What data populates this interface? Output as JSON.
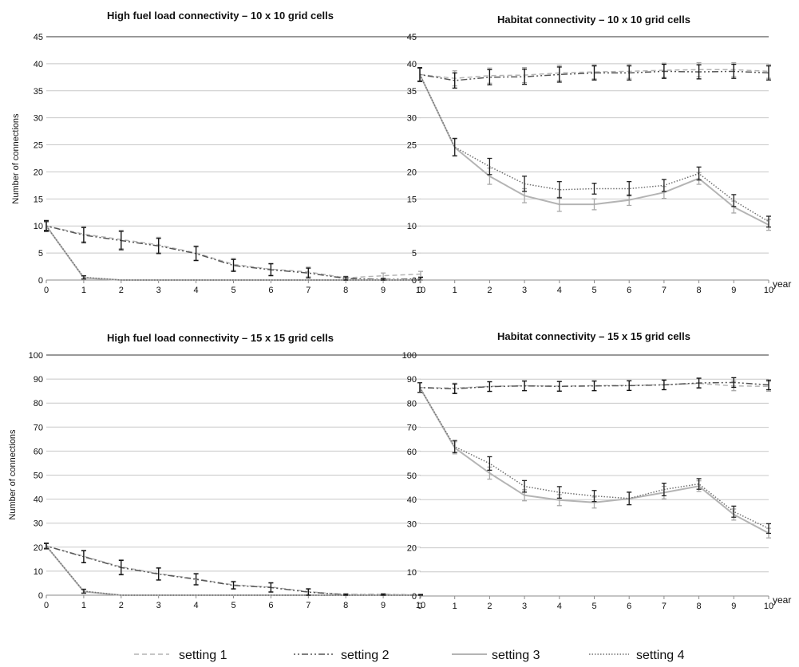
{
  "legend": {
    "entries": [
      "setting 1",
      "setting 2",
      "setting 3",
      "setting 4"
    ]
  },
  "chart_data": [
    {
      "type": "line",
      "title": "High fuel load connectivity – 10 x 10 grid cells",
      "xlabel": "",
      "ylabel": "Number of connections",
      "x": [
        0,
        1,
        2,
        3,
        4,
        5,
        6,
        7,
        8,
        9,
        10
      ],
      "xlim": [
        0,
        10
      ],
      "ylim": [
        0,
        45
      ],
      "yticks": [
        0,
        5,
        10,
        15,
        20,
        25,
        30,
        35,
        40,
        45
      ],
      "error_bars": true,
      "series": [
        {
          "name": "setting 1",
          "values": [
            10,
            8.5,
            7.5,
            6.5,
            5,
            2.9,
            2,
            1.5,
            0.4,
            0.8,
            1.1
          ],
          "err": [
            1,
            1.4,
            1.7,
            1.4,
            1.3,
            1.1,
            1.1,
            0.9,
            0.3,
            0.5,
            0.5
          ]
        },
        {
          "name": "setting 2",
          "values": [
            10,
            8.3,
            7.3,
            6.3,
            4.9,
            2.7,
            1.9,
            1.3,
            0.3,
            0.1,
            0.2
          ],
          "err": [
            1,
            1.4,
            1.7,
            1.4,
            1.3,
            1.1,
            1.1,
            0.9,
            0.3,
            0.2,
            0.3
          ]
        },
        {
          "name": "setting 3",
          "values": [
            10,
            0.4,
            0,
            0,
            0,
            0,
            0,
            0,
            0,
            0,
            0
          ],
          "err": [
            0.8,
            0.3,
            0,
            0,
            0,
            0,
            0,
            0,
            0,
            0,
            0
          ]
        },
        {
          "name": "setting 4",
          "values": [
            10,
            0.5,
            0,
            0,
            0,
            0,
            0,
            0,
            0,
            0,
            0
          ],
          "err": [
            0.8,
            0.3,
            0,
            0,
            0,
            0,
            0,
            0,
            0,
            0,
            0
          ]
        }
      ]
    },
    {
      "type": "line",
      "title": "Habitat connectivity – 10 x 10 grid cells",
      "xlabel": "year",
      "ylabel": "",
      "x": [
        0,
        1,
        2,
        3,
        4,
        5,
        6,
        7,
        8,
        9,
        10
      ],
      "xlim": [
        0,
        10
      ],
      "ylim": [
        0,
        45
      ],
      "yticks": [
        0,
        5,
        10,
        15,
        20,
        25,
        30,
        35,
        40,
        45
      ],
      "error_bars": true,
      "series": [
        {
          "name": "setting 1",
          "values": [
            38,
            37.3,
            37.8,
            37.9,
            38.3,
            38.5,
            38.6,
            38.8,
            38.9,
            38.9,
            38.6
          ],
          "err": [
            1.3,
            1.4,
            1.4,
            1.4,
            1.4,
            1.3,
            1.3,
            1.3,
            1.3,
            1.3,
            1.3
          ]
        },
        {
          "name": "setting 2",
          "values": [
            38,
            36.9,
            37.5,
            37.6,
            38.0,
            38.3,
            38.3,
            38.6,
            38.5,
            38.6,
            38.3
          ],
          "err": [
            1.3,
            1.4,
            1.4,
            1.4,
            1.4,
            1.3,
            1.3,
            1.3,
            1.3,
            1.3,
            1.3
          ]
        },
        {
          "name": "setting 3",
          "values": [
            38,
            24.5,
            19.2,
            15.6,
            14.0,
            14.0,
            14.8,
            16.2,
            18.8,
            13.5,
            10.2
          ],
          "err": [
            1.2,
            1.6,
            1.5,
            1.3,
            1.3,
            1.0,
            1.0,
            1.1,
            1.1,
            1.1,
            1.0
          ]
        },
        {
          "name": "setting 4",
          "values": [
            38,
            24.6,
            21.0,
            17.8,
            16.7,
            16.9,
            16.9,
            17.5,
            19.7,
            14.7,
            10.8
          ],
          "err": [
            1.2,
            1.6,
            1.5,
            1.4,
            1.5,
            1.0,
            1.3,
            1.1,
            1.2,
            1.1,
            1.0
          ]
        }
      ]
    },
    {
      "type": "line",
      "title": "High fuel load connectivity – 15 x 15 grid cells",
      "xlabel": "",
      "ylabel": "Number of connections",
      "x": [
        0,
        1,
        2,
        3,
        4,
        5,
        6,
        7,
        8,
        9,
        10
      ],
      "xlim": [
        0,
        10
      ],
      "ylim": [
        0,
        100
      ],
      "yticks": [
        0,
        10,
        20,
        30,
        40,
        50,
        60,
        70,
        80,
        90,
        100
      ],
      "error_bars": true,
      "series": [
        {
          "name": "setting 1",
          "values": [
            20.5,
            16.2,
            11.8,
            9.0,
            6.8,
            4.3,
            3.4,
            1.5,
            0.2,
            0.3,
            0.1
          ],
          "err": [
            1.2,
            2.5,
            3.0,
            2.5,
            2.3,
            1.5,
            1.9,
            1.3,
            0.3,
            0.3,
            0.2
          ]
        },
        {
          "name": "setting 2",
          "values": [
            20.5,
            16.0,
            11.5,
            8.8,
            6.6,
            4.1,
            3.2,
            1.3,
            0.2,
            0.2,
            0.1
          ],
          "err": [
            1.2,
            2.5,
            3.0,
            2.5,
            2.3,
            1.5,
            1.9,
            1.3,
            0.3,
            0.3,
            0.2
          ]
        },
        {
          "name": "setting 3",
          "values": [
            20.5,
            1.5,
            0,
            0,
            0,
            0,
            0,
            0,
            0,
            0,
            0
          ],
          "err": [
            1.0,
            0.8,
            0,
            0,
            0,
            0,
            0,
            0,
            0,
            0,
            0
          ]
        },
        {
          "name": "setting 4",
          "values": [
            20.5,
            1.7,
            0,
            0,
            0,
            0,
            0,
            0,
            0,
            0,
            0
          ],
          "err": [
            1.0,
            0.8,
            0,
            0,
            0,
            0,
            0,
            0,
            0,
            0,
            0
          ]
        }
      ]
    },
    {
      "type": "line",
      "title": "Habitat connectivity – 15 x 15 grid cells",
      "xlabel": "year",
      "ylabel": "",
      "x": [
        0,
        1,
        2,
        3,
        4,
        5,
        6,
        7,
        8,
        9,
        10
      ],
      "xlim": [
        0,
        10
      ],
      "ylim": [
        0,
        100
      ],
      "yticks": [
        0,
        10,
        20,
        30,
        40,
        50,
        60,
        70,
        80,
        90,
        100
      ],
      "error_bars": true,
      "series": [
        {
          "name": "setting 1",
          "values": [
            86.5,
            86.3,
            87.0,
            87.3,
            87.1,
            87.3,
            87.4,
            87.7,
            88.2,
            87.2,
            87.0
          ],
          "err": [
            2.0,
            2.0,
            2.0,
            2.0,
            2.0,
            2.0,
            2.0,
            2.0,
            2.0,
            2.0,
            2.0
          ]
        },
        {
          "name": "setting 2",
          "values": [
            86.5,
            86.0,
            86.9,
            87.2,
            87.0,
            87.2,
            87.3,
            87.6,
            88.4,
            88.6,
            87.6
          ],
          "err": [
            2.0,
            2.0,
            2.0,
            2.0,
            2.0,
            2.0,
            2.0,
            2.0,
            2.0,
            2.0,
            2.0
          ]
        },
        {
          "name": "setting 3",
          "values": [
            86.5,
            61.5,
            51.0,
            41.8,
            39.8,
            38.8,
            40.4,
            42.9,
            45.6,
            33.8,
            26.1
          ],
          "err": [
            2.0,
            2.5,
            2.5,
            2.3,
            2.3,
            2.3,
            2.6,
            2.6,
            2.2,
            2.3,
            2.0
          ]
        },
        {
          "name": "setting 4",
          "values": [
            86.5,
            62.0,
            55.0,
            45.5,
            43.0,
            41.5,
            40.5,
            44.2,
            46.5,
            35.0,
            28.0
          ],
          "err": [
            2.0,
            2.5,
            2.8,
            2.4,
            2.4,
            2.3,
            2.6,
            2.6,
            2.2,
            2.3,
            2.0
          ]
        }
      ]
    }
  ]
}
